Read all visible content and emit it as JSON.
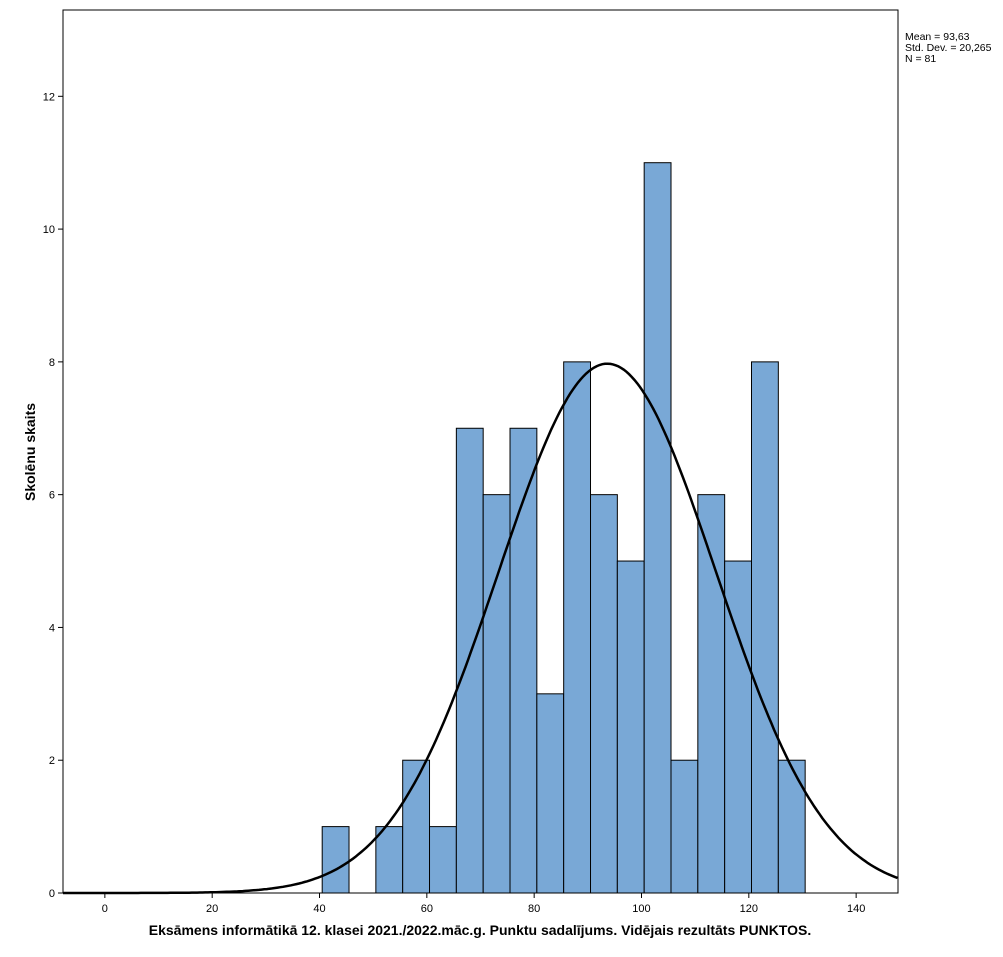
{
  "chart_data": {
    "type": "bar",
    "subtype": "histogram",
    "xlabel": "Eksāmens informātikā 12. klasei 2021./2022.māc.g. Punktu sadalījums. Vidējais rezultāts PUNKTOS.",
    "ylabel": "Skolēnu skaits",
    "xlim": [
      -7.8,
      147.8
    ],
    "ylim": [
      0,
      13.3
    ],
    "xticks": [
      0,
      20,
      40,
      60,
      80,
      100,
      120,
      140
    ],
    "yticks": [
      0,
      2,
      4,
      6,
      8,
      10,
      12
    ],
    "bin_width": 5,
    "bin_starts": [
      40.5,
      45.5,
      50.5,
      55.5,
      60.5,
      65.5,
      70.5,
      75.5,
      80.5,
      85.5,
      90.5,
      95.5,
      100.5,
      105.5,
      110.5,
      115.5,
      120.5,
      125.5
    ],
    "counts": [
      1,
      0,
      1,
      2,
      1,
      7,
      6,
      7,
      3,
      8,
      6,
      5,
      11,
      2,
      6,
      5,
      8,
      2
    ],
    "normal_curve": {
      "mean": 93.63,
      "std": 20.265,
      "n": 81
    },
    "stats_labels": [
      "Mean = 93,63",
      "Std. Dev. = 20,265",
      "N = 81"
    ],
    "colors": {
      "bar": "#79a8d6",
      "bar_edge": "#000000",
      "curve": "#000000"
    },
    "grid": false
  }
}
